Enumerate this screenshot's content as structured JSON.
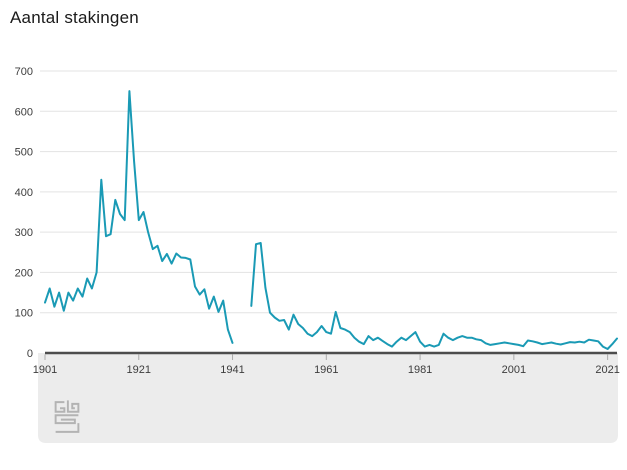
{
  "title": "Aantal stakingen",
  "chart_data": {
    "type": "line",
    "title": "Aantal stakingen",
    "xlabel": "",
    "ylabel": "",
    "legend": "none",
    "grid": "horizontal",
    "xlim": [
      1901,
      2023
    ],
    "ylim": [
      0,
      700
    ],
    "x_ticks": [
      1901,
      1921,
      1941,
      1961,
      1981,
      2001,
      2021
    ],
    "y_ticks": [
      0,
      100,
      200,
      300,
      400,
      500,
      600,
      700
    ],
    "missing_years_gap": [
      1942,
      1943,
      1944
    ],
    "line_color": "#1A9AB5",
    "grid_color": "#e3e3e3",
    "axis_color": "#4d4d4d",
    "tick_color": "#ababab",
    "panel_color": "#ececec",
    "years": [
      1901,
      1902,
      1903,
      1904,
      1905,
      1906,
      1907,
      1908,
      1909,
      1910,
      1911,
      1912,
      1913,
      1914,
      1915,
      1916,
      1917,
      1918,
      1919,
      1920,
      1921,
      1922,
      1923,
      1924,
      1925,
      1926,
      1927,
      1928,
      1929,
      1930,
      1931,
      1932,
      1933,
      1934,
      1935,
      1936,
      1937,
      1938,
      1939,
      1940,
      1941,
      1942,
      1943,
      1944,
      1945,
      1946,
      1947,
      1948,
      1949,
      1950,
      1951,
      1952,
      1953,
      1954,
      1955,
      1956,
      1957,
      1958,
      1959,
      1960,
      1961,
      1962,
      1963,
      1964,
      1965,
      1966,
      1967,
      1968,
      1969,
      1970,
      1971,
      1972,
      1973,
      1974,
      1975,
      1976,
      1977,
      1978,
      1979,
      1980,
      1981,
      1982,
      1983,
      1984,
      1985,
      1986,
      1987,
      1988,
      1989,
      1990,
      1991,
      1992,
      1993,
      1994,
      1995,
      1996,
      1997,
      1998,
      1999,
      2000,
      2001,
      2002,
      2003,
      2004,
      2005,
      2006,
      2007,
      2008,
      2009,
      2010,
      2011,
      2012,
      2013,
      2014,
      2015,
      2016,
      2017,
      2018,
      2019,
      2020,
      2021,
      2022,
      2023
    ],
    "values": [
      125,
      160,
      115,
      150,
      105,
      150,
      130,
      160,
      140,
      185,
      160,
      200,
      430,
      290,
      295,
      380,
      345,
      330,
      650,
      475,
      330,
      350,
      300,
      258,
      266,
      228,
      246,
      222,
      247,
      237,
      236,
      232,
      165,
      145,
      158,
      110,
      140,
      102,
      130,
      58,
      25,
      null,
      null,
      null,
      117,
      270,
      273,
      162,
      100,
      88,
      80,
      82,
      58,
      95,
      72,
      62,
      48,
      42,
      52,
      67,
      52,
      48,
      102,
      62,
      58,
      52,
      38,
      28,
      22,
      42,
      32,
      38,
      30,
      22,
      16,
      28,
      38,
      32,
      42,
      52,
      28,
      16,
      20,
      16,
      20,
      48,
      38,
      32,
      38,
      42,
      38,
      38,
      34,
      32,
      24,
      20,
      22,
      24,
      26,
      24,
      22,
      20,
      17,
      31,
      29,
      26,
      22,
      24,
      26,
      23,
      21,
      24,
      27,
      26,
      28,
      26,
      33,
      31,
      29,
      16,
      10,
      22,
      36
    ]
  },
  "footer": {
    "logo_name": "CBS"
  }
}
